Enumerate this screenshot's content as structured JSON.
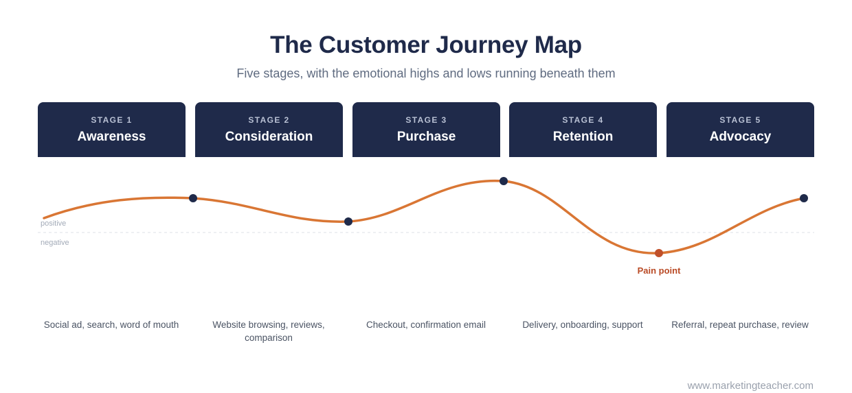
{
  "header": {
    "title": "The Customer Journey Map",
    "subtitle": "Five stages, with the emotional highs and lows running beneath them"
  },
  "stages": [
    {
      "label": "STAGE 1",
      "name": "Awareness",
      "touchpoints": "Social ad, search, word of mouth"
    },
    {
      "label": "STAGE 2",
      "name": "Consideration",
      "touchpoints": "Website browsing, reviews, comparison"
    },
    {
      "label": "STAGE 3",
      "name": "Purchase",
      "touchpoints": "Checkout, confirmation email"
    },
    {
      "label": "STAGE 4",
      "name": "Retention",
      "touchpoints": "Delivery, onboarding, support"
    },
    {
      "label": "STAGE 5",
      "name": "Advocacy",
      "touchpoints": "Referral, repeat purchase, review"
    }
  ],
  "emotion_axis": {
    "positive_label": "positive",
    "negative_label": "negative"
  },
  "pain_point": {
    "label": "Pain point",
    "stage": 4
  },
  "colors": {
    "navy": "#1f2a4a",
    "curve": "#d97634",
    "pain": "#c0502a"
  },
  "footer": {
    "source": "www.marketingteacher.com"
  }
}
